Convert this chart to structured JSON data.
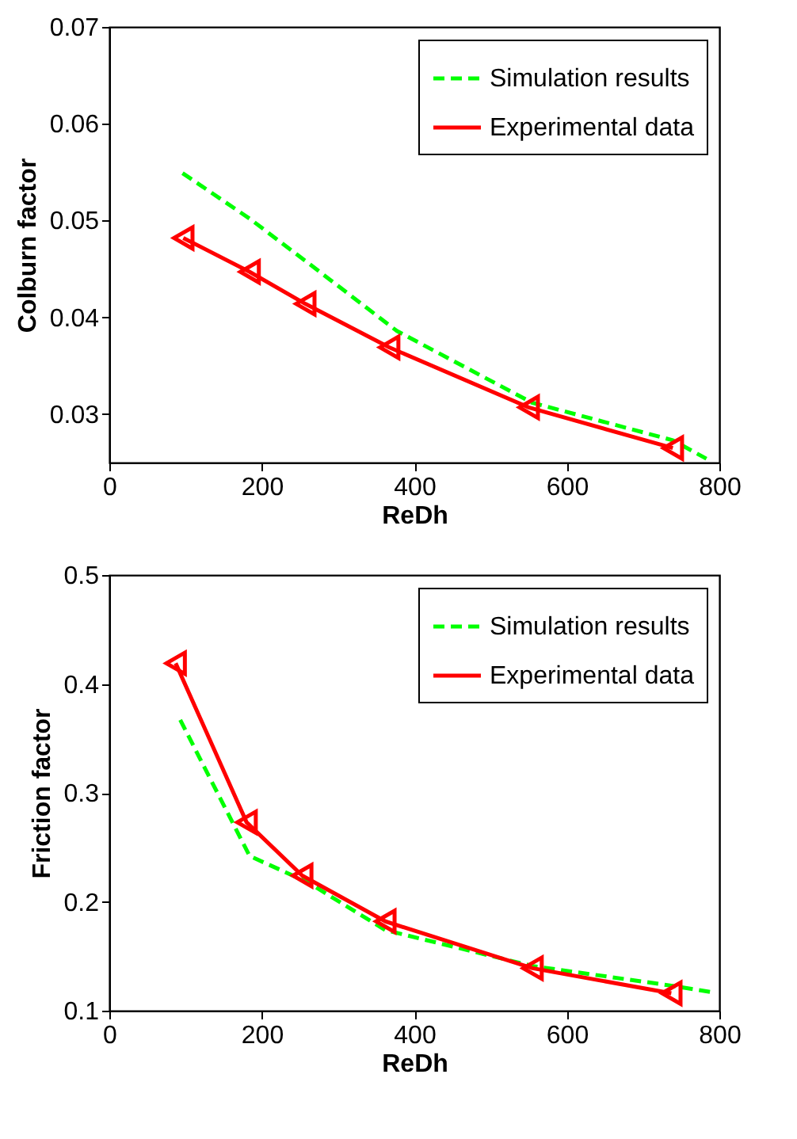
{
  "chart_data": [
    {
      "type": "line",
      "xlabel": "ReDh",
      "ylabel": "Colburn factor",
      "xlim": [
        0,
        800
      ],
      "xticks": [
        0,
        200,
        400,
        600,
        800
      ],
      "ylim": [
        0.025,
        0.07
      ],
      "yticks": [
        0.03,
        0.04,
        0.05,
        0.06,
        0.07
      ],
      "legend": "top right",
      "series": [
        {
          "name": "Simulation results",
          "color": "#00ff00",
          "line_style": "dashed",
          "marker": "none",
          "x": [
            96,
            184,
            261,
            377,
            554,
            739,
            783
          ],
          "values": [
            0.0549,
            0.0502,
            0.0456,
            0.0386,
            0.0312,
            0.0273,
            0.0254
          ]
        },
        {
          "name": "Experimental data",
          "color": "#ff0000",
          "line_style": "solid",
          "marker": "triangle",
          "x": [
            97,
            184,
            257,
            367,
            550,
            739
          ],
          "values": [
            0.0482,
            0.0447,
            0.0414,
            0.0369,
            0.0307,
            0.0265
          ]
        }
      ]
    },
    {
      "type": "line",
      "xlabel": "ReDh",
      "ylabel": "Friction factor",
      "xlim": [
        0,
        800
      ],
      "xticks": [
        0,
        200,
        400,
        600,
        800
      ],
      "ylim": [
        0.1,
        0.5
      ],
      "yticks": [
        0.1,
        0.2,
        0.3,
        0.4,
        0.5
      ],
      "legend": "top right",
      "series": [
        {
          "name": "Simulation results",
          "color": "#00ff00",
          "line_style": "dashed",
          "marker": "none",
          "x": [
            93,
            160,
            184,
            260,
            362,
            555,
            737,
            790
          ],
          "values": [
            0.367,
            0.275,
            0.242,
            0.218,
            0.174,
            0.141,
            0.123,
            0.117
          ]
        },
        {
          "name": "Experimental data",
          "color": "#ff0000",
          "line_style": "solid",
          "marker": "triangle",
          "x": [
            87,
            180,
            253,
            362,
            555,
            737
          ],
          "values": [
            0.419,
            0.273,
            0.224,
            0.182,
            0.139,
            0.116
          ]
        }
      ]
    }
  ]
}
